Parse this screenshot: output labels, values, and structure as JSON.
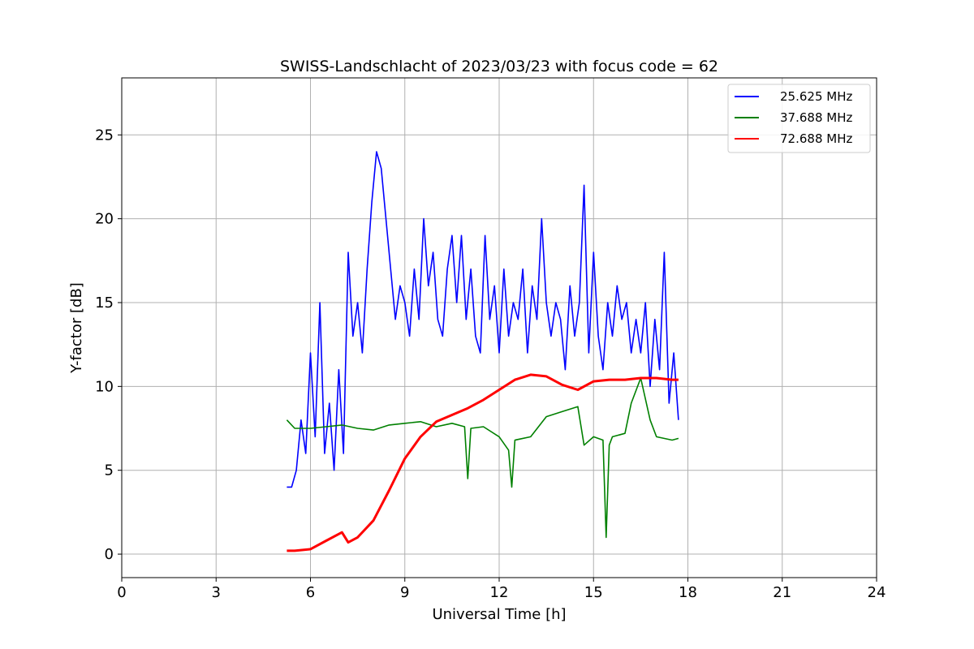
{
  "chart_data": {
    "type": "line",
    "title": "SWISS-Landschlacht of 2023/03/23 with focus code = 62",
    "xlabel": "Universal Time [h]",
    "ylabel": "Y-factor [dB]",
    "xlim": [
      0,
      24
    ],
    "ylim": [
      -1.4,
      28.4
    ],
    "xticks": [
      0,
      3,
      6,
      9,
      12,
      15,
      18,
      21,
      24
    ],
    "xtick_labels": [
      "0",
      "3",
      "6",
      "9",
      "12",
      "15",
      "18",
      "21",
      "24"
    ],
    "yticks": [
      0,
      5,
      10,
      15,
      20,
      25
    ],
    "ytick_labels": [
      "0",
      "5",
      "10",
      "15",
      "20",
      "25"
    ],
    "grid": true,
    "legend_position": "top-right",
    "series": [
      {
        "name": "25.625 MHz",
        "color": "#0000ff",
        "x": [
          5.25,
          5.4,
          5.55,
          5.7,
          5.85,
          6.0,
          6.15,
          6.3,
          6.45,
          6.6,
          6.75,
          6.9,
          7.05,
          7.2,
          7.35,
          7.5,
          7.65,
          7.8,
          7.95,
          8.1,
          8.25,
          8.4,
          8.55,
          8.7,
          8.85,
          9.0,
          9.15,
          9.3,
          9.45,
          9.6,
          9.75,
          9.9,
          10.05,
          10.2,
          10.35,
          10.5,
          10.65,
          10.8,
          10.95,
          11.1,
          11.25,
          11.4,
          11.55,
          11.7,
          11.85,
          12.0,
          12.15,
          12.3,
          12.45,
          12.6,
          12.75,
          12.9,
          13.05,
          13.2,
          13.35,
          13.5,
          13.65,
          13.8,
          13.95,
          14.1,
          14.25,
          14.4,
          14.55,
          14.7,
          14.85,
          15.0,
          15.15,
          15.3,
          15.45,
          15.6,
          15.75,
          15.9,
          16.05,
          16.2,
          16.35,
          16.5,
          16.65,
          16.8,
          16.95,
          17.1,
          17.25,
          17.4,
          17.55,
          17.7
        ],
        "y": [
          4,
          4,
          5,
          8,
          6,
          12,
          7,
          15,
          6,
          9,
          5,
          11,
          6,
          18,
          13,
          15,
          12,
          17,
          21,
          24,
          23,
          20,
          17,
          14,
          16,
          15,
          13,
          17,
          14,
          20,
          16,
          18,
          14,
          13,
          17,
          19,
          15,
          19,
          14,
          17,
          13,
          12,
          19,
          14,
          16,
          12,
          17,
          13,
          15,
          14,
          17,
          12,
          16,
          14,
          20,
          15,
          13,
          15,
          14,
          11,
          16,
          13,
          15,
          22,
          12,
          18,
          13,
          11,
          15,
          13,
          16,
          14,
          15,
          12,
          14,
          12,
          15,
          10,
          14,
          11,
          18,
          9,
          12,
          8
        ]
      },
      {
        "name": "37.688 MHz",
        "color": "#008000",
        "x": [
          5.25,
          5.5,
          6.0,
          6.5,
          7.0,
          7.5,
          8.0,
          8.5,
          9.0,
          9.5,
          10.0,
          10.5,
          10.9,
          11.0,
          11.1,
          11.5,
          12.0,
          12.3,
          12.4,
          12.5,
          13.0,
          13.5,
          14.0,
          14.5,
          14.7,
          15.0,
          15.3,
          15.4,
          15.5,
          15.6,
          16.0,
          16.2,
          16.5,
          16.8,
          17.0,
          17.5,
          17.7
        ],
        "y": [
          8,
          7.5,
          7.5,
          7.6,
          7.7,
          7.5,
          7.4,
          7.7,
          7.8,
          7.9,
          7.6,
          7.8,
          7.6,
          4.5,
          7.5,
          7.6,
          7.0,
          6.2,
          4.0,
          6.8,
          7.0,
          8.2,
          8.5,
          8.8,
          6.5,
          7.0,
          6.8,
          1.0,
          6.5,
          7.0,
          7.2,
          9.0,
          10.5,
          8.0,
          7.0,
          6.8,
          6.9
        ]
      },
      {
        "name": "72.688 MHz",
        "color": "#ff0000",
        "x": [
          5.25,
          5.5,
          6.0,
          6.5,
          7.0,
          7.2,
          7.5,
          8.0,
          8.5,
          9.0,
          9.5,
          10.0,
          10.5,
          11.0,
          11.5,
          12.0,
          12.5,
          13.0,
          13.5,
          14.0,
          14.5,
          15.0,
          15.5,
          16.0,
          16.5,
          17.0,
          17.5,
          17.7
        ],
        "y": [
          0.2,
          0.2,
          0.3,
          0.8,
          1.3,
          0.7,
          1.0,
          2.0,
          3.8,
          5.7,
          7.0,
          7.9,
          8.3,
          8.7,
          9.2,
          9.8,
          10.4,
          10.7,
          10.6,
          10.1,
          9.8,
          10.3,
          10.4,
          10.4,
          10.5,
          10.5,
          10.4,
          10.4
        ]
      }
    ]
  }
}
